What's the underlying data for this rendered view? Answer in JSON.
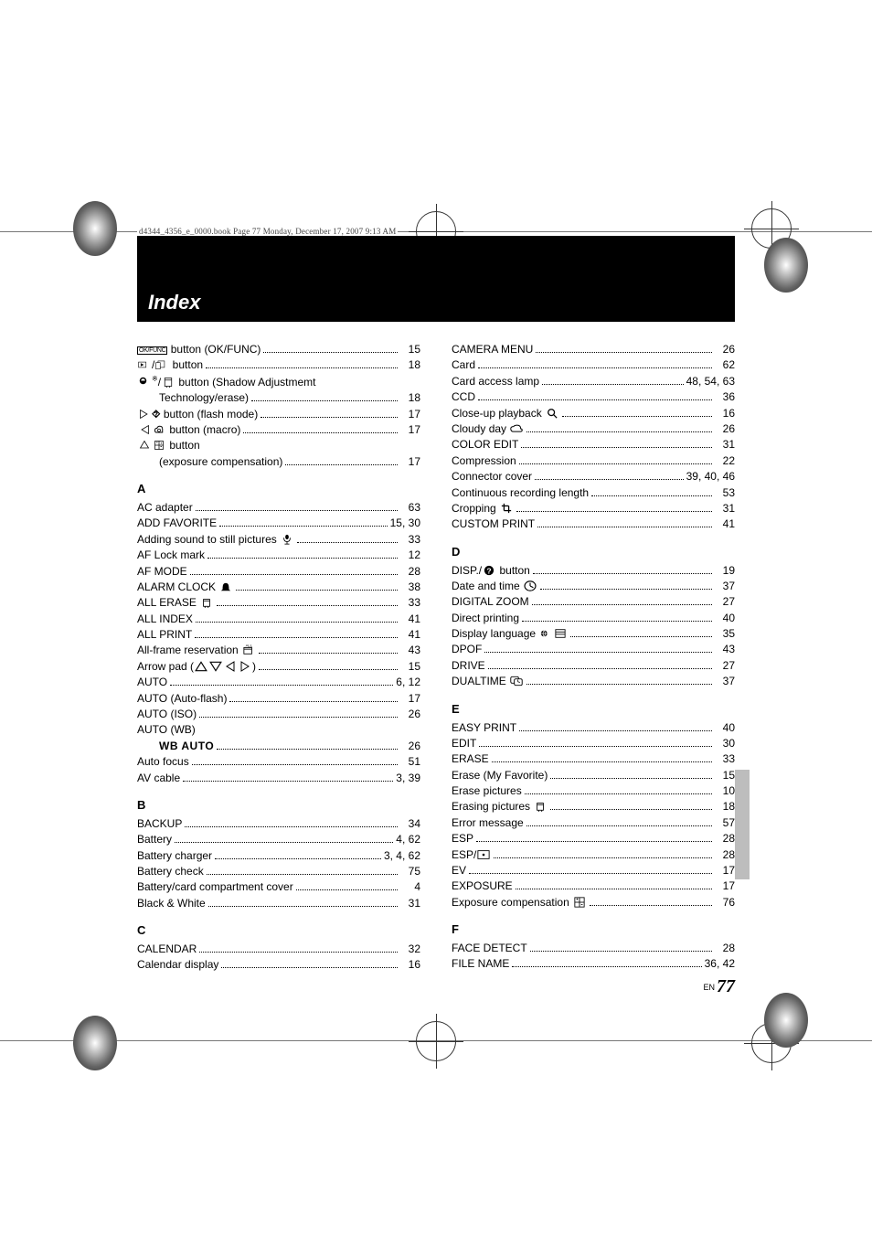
{
  "running_head": "d4344_4356_e_0000.book  Page 77  Monday, December 17, 2007  9:13 AM",
  "title": "Index",
  "footer": {
    "lang": "EN",
    "page": "77"
  },
  "left": {
    "pre": [
      {
        "label_html": "<span class='okfunc'>OK/FUNC</span> button (OK/FUNC)",
        "page": "15"
      },
      {
        "label_html": "<svg class='icon' viewBox='0 0 24 16'><rect x='1' y='3' width='14' height='10' fill='none' stroke='#000'/><polygon points='5,5 5,11 11,8' fill='#000'/></svg>/<svg class='icon' viewBox='0 0 24 16'><rect x='5' y='1' width='12' height='12' fill='none' stroke='#000'/><rect x='1' y='4' width='8' height='12' fill='#fff' stroke='#000'/></svg> button",
        "page": "18"
      },
      {
        "label_html": "<svg class='icon' viewBox='0 0 16 16'><circle cx='6' cy='6' r='4' fill='none' stroke='#000' stroke-width='2'/><path d='M2 6 A4 4 0 0 0 10 6' fill='#000'/></svg><sup style='font-size:8px'>※</sup>/<svg class='icon' viewBox='0 0 16 16'><rect x='3' y='2' width='10' height='12' fill='none' stroke='#000'/><line x1='3' y1='5' x2='13' y2='5' stroke='#000'/><line x1='6' y1='14' x2='6' y2='16' stroke='#000'/><line x1='10' y1='14' x2='10' y2='16' stroke='#000'/></svg> button (Shadow Adjustmemt",
        "nowrap_page": true
      },
      {
        "label_html": "Technology/erase)",
        "page": "18",
        "indent": true
      },
      {
        "label_html": "<svg class='icon' viewBox='0 0 16 16'><polygon points='2,2 2,14 12,8' fill='none' stroke='#000'/></svg><b>⯑</b> button (flash mode)",
        "page": "17"
      },
      {
        "label_html": "<svg class='icon' viewBox='0 0 16 16'><polygon points='14,2 14,14 4,8' fill='none' stroke='#000'/></svg><svg class='icon' viewBox='0 0 16 16'><path d='M4 12 Q2 12 2 9 Q2 6 5 6 Q6 3 9 3 Q13 3 13 7 L13 12 Z' fill='none' stroke='#000' stroke-width='1.3'/><circle cx='8' cy='9' r='2' fill='none' stroke='#000'/></svg> button (macro)",
        "page": "17"
      },
      {
        "label_html": "<svg class='icon' viewBox='0 0 16 16'><polygon points='8,2 2,12 14,12' fill='none' stroke='#000'/></svg><svg class='icon' viewBox='0 0 16 16'><rect x='2' y='2' width='12' height='12' fill='none' stroke='#000'/><line x1='2' y1='8' x2='14' y2='8' stroke='#000'/><line x1='8' y1='2' x2='8' y2='14' stroke='#000'/><line x1='4' y1='4' x2='6' y2='4' stroke='#000'/><line x1='10' y1='10' x2='12' y2='10' stroke='#000'/><line x1='11' y1='4' x2='11' y2='6' stroke='#000'/></svg> button",
        "nowrap_page": true
      },
      {
        "label_html": "(exposure compensation)",
        "page": "17",
        "indent": true
      }
    ],
    "A": [
      {
        "label": "AC adapter",
        "page": "63"
      },
      {
        "label": "ADD FAVORITE",
        "page": "15, 30"
      },
      {
        "label_html": "Adding sound to still pictures <svg class='icon' viewBox='0 0 12 14'><ellipse cx='6' cy='4' rx='2.2' ry='3' fill='#000'/><path d='M2 5 Q2 10 6 10 Q10 10 10 5' fill='none' stroke='#000'/><line x1='6' y1='10' x2='6' y2='13' stroke='#000'/><line x1='3' y1='13' x2='9' y2='13' stroke='#000'/></svg>",
        "page": "33"
      },
      {
        "label": "AF Lock mark",
        "page": "12"
      },
      {
        "label": "AF MODE",
        "page": "28"
      },
      {
        "label_html": "ALARM CLOCK <svg class='icon' viewBox='0 0 14 14'><path d='M7 2 Q3 2 3 8 L3 10 L1 12 L13 12 L11 10 L11 8 Q11 2 7 2 Z' fill='#000'/></svg>",
        "page": "38"
      },
      {
        "label_html": "ALL ERASE <svg class='icon' viewBox='0 0 14 14'><rect x='3' y='3' width='8' height='9' fill='none' stroke='#000'/><line x1='3' y1='5' x2='11' y2='5' stroke='#000'/><line x1='5' y1='12' x2='5' y2='14' stroke='#000'/><line x1='9' y1='12' x2='9' y2='14' stroke='#000'/></svg>",
        "page": "33"
      },
      {
        "label": "ALL INDEX",
        "page": "41"
      },
      {
        "label": "ALL PRINT",
        "page": "41"
      },
      {
        "label_html": "All-frame reservation <svg class='icon' viewBox='0 0 16 14'><rect x='2' y='4' width='10' height='8' fill='none' stroke='#000'/><line x1='2' y1='6' x2='12' y2='6' stroke='#000'/><text x='4' y='3' font-size='5'>ALL</text></svg>",
        "page": "43"
      },
      {
        "label_html": "Arrow pad (<svg class='icon' viewBox='0 0 12 10'><polygon points='6,1 1,9 11,9' fill='none' stroke='#000'/></svg><svg class='icon' viewBox='0 0 12 10'><polygon points='1,1 11,1 6,9' fill='none' stroke='#000'/></svg><svg class='icon' viewBox='0 0 10 12'><polygon points='9,1 9,11 1,6' fill='none' stroke='#000'/></svg><svg class='icon' viewBox='0 0 10 12'><polygon points='1,1 1,11 9,6' fill='none' stroke='#000'/></svg>)",
        "page": "15"
      },
      {
        "label": "AUTO",
        "page": "6, 12"
      },
      {
        "label": "AUTO (Auto-flash)",
        "page": "17"
      },
      {
        "label": "AUTO (ISO)",
        "page": "26"
      },
      {
        "label": "AUTO (WB)",
        "nowrap_page": true
      },
      {
        "label_html": "<span class='wb'>WB AUTO</span>",
        "page": "26"
      },
      {
        "label": "Auto focus",
        "page": "51"
      },
      {
        "label": "AV cable",
        "page": "3, 39"
      }
    ],
    "B": [
      {
        "label": "BACKUP",
        "page": "34"
      },
      {
        "label": "Battery",
        "page": "4, 62"
      },
      {
        "label": "Battery charger",
        "page": "3, 4, 62"
      },
      {
        "label": "Battery check",
        "page": "75"
      },
      {
        "label": "Battery/card compartment cover",
        "page": "4"
      },
      {
        "label": "Black & White",
        "page": "31"
      }
    ],
    "C": [
      {
        "label": "CALENDAR",
        "page": "32"
      },
      {
        "label": "Calendar display",
        "page": "16"
      }
    ]
  },
  "right": {
    "C_cont": [
      {
        "label": "CAMERA MENU",
        "page": "26"
      },
      {
        "label": "Card",
        "page": "62"
      },
      {
        "label": "Card access lamp",
        "page": "48, 54, 63"
      },
      {
        "label": "CCD",
        "page": "36"
      },
      {
        "label_html": "Close-up playback <svg class='icon' viewBox='0 0 14 14'><circle cx='6' cy='6' r='4' fill='none' stroke='#000' stroke-width='1.5'/><line x1='9' y1='9' x2='13' y2='13' stroke='#000' stroke-width='1.5'/></svg>",
        "page": "16"
      },
      {
        "label_html": "Cloudy day <svg class='icon' viewBox='0 0 18 12'><path d='M5 10 Q1 10 1 6 Q1 3 5 3 Q6 1 10 1 Q15 1 15 6 Q17 6 17 8 Q17 10 15 10 Z' fill='none' stroke='#000' stroke-width='1.3'/></svg>",
        "page": "26"
      },
      {
        "label": "COLOR EDIT",
        "page": "31"
      },
      {
        "label": "Compression",
        "page": "22"
      },
      {
        "label": "Connector cover",
        "page": "39, 40, 46"
      },
      {
        "label": "Continuous recording length",
        "page": "53"
      },
      {
        "label_html": "Cropping <svg class='icon' viewBox='0 0 14 14'><line x1='4' y1='1' x2='4' y2='10' stroke='#000' stroke-width='1.5'/><line x1='1' y1='4' x2='10' y2='4' stroke='#000' stroke-width='1.5'/><line x1='10' y1='4' x2='10' y2='13' stroke='#000' stroke-width='1.5'/><line x1='4' y1='10' x2='13' y2='10' stroke='#000' stroke-width='1.5'/></svg>",
        "page": "31"
      },
      {
        "label": "CUSTOM PRINT",
        "page": "41"
      }
    ],
    "D": [
      {
        "label_html": "DISP./<svg class='icon' viewBox='0 0 14 14'><circle cx='7' cy='7' r='6' fill='#000'/><text x='4' y='11' font-size='10' fill='#fff' font-weight='bold'>?</text></svg> button",
        "page": "19"
      },
      {
        "label_html": "Date and time <svg class='icon' viewBox='0 0 16 14'><ellipse cx='8' cy='7' rx='7' ry='6' fill='none' stroke='#000' stroke-width='1.3'/><line x1='8' y1='7' x2='8' y2='3' stroke='#000' stroke-width='1.3'/><line x1='8' y1='7' x2='12' y2='9' stroke='#000' stroke-width='1.3'/></svg>",
        "page": "37"
      },
      {
        "label": "DIGITAL ZOOM",
        "page": "27"
      },
      {
        "label": "Direct printing",
        "page": "40"
      },
      {
        "label_html": "Display language <svg class='icon' viewBox='0 0 14 14'><circle cx='5' cy='7' r='4' fill='#000'/><path d='M5 3 Q8 7 5 11 M5 3 Q2 7 5 11 M1 7 L9 7' stroke='#fff' stroke-width='0.8' fill='none'/></svg><svg class='icon' viewBox='0 0 14 14'><rect x='1' y='2' width='12' height='10' fill='none' stroke='#000'/><line x1='1' y1='5' x2='13' y2='5' stroke='#000'/><line x1='1' y1='8' x2='13' y2='8' stroke='#000'/></svg>",
        "page": "35"
      },
      {
        "label": "DPOF",
        "page": "43"
      },
      {
        "label": "DRIVE",
        "page": "27"
      },
      {
        "label_html": "DUALTIME <svg class='icon' viewBox='0 0 18 14'><rect x='1' y='1' width='11' height='9' rx='2' fill='none' stroke='#000' stroke-width='1.2'/><rect x='6' y='4' width='11' height='9' rx='2' fill='#fff' stroke='#000' stroke-width='1.2'/><line x1='11' y1='8' x2='11' y2='5' stroke='#000'/><line x1='11' y1='8' x2='14' y2='9' stroke='#000'/></svg>",
        "page": "37"
      }
    ],
    "E": [
      {
        "label": "EASY PRINT",
        "page": "40"
      },
      {
        "label": "EDIT",
        "page": "30"
      },
      {
        "label": "ERASE",
        "page": "33"
      },
      {
        "label": "Erase (My Favorite)",
        "page": "15"
      },
      {
        "label": "Erase pictures",
        "page": "10"
      },
      {
        "label_html": "Erasing pictures <svg class='icon' viewBox='0 0 14 14'><rect x='3' y='3' width='8' height='9' fill='none' stroke='#000'/><line x1='3' y1='5' x2='11' y2='5' stroke='#000'/><line x1='5' y1='12' x2='5' y2='14' stroke='#000'/><line x1='9' y1='12' x2='9' y2='14' stroke='#000'/></svg>",
        "page": "18"
      },
      {
        "label": "Error message",
        "page": "57"
      },
      {
        "label": "ESP",
        "page": "28"
      },
      {
        "label_html": "ESP/<svg class='icon' viewBox='0 0 16 12'><rect x='1' y='1' width='14' height='10' fill='none' stroke='#000'/><circle cx='8' cy='6' r='1.5' fill='#000'/></svg>",
        "page": "28"
      },
      {
        "label": "EV",
        "page": "17"
      },
      {
        "label": "EXPOSURE",
        "page": "17"
      },
      {
        "label_html": "Exposure compensation <svg class='icon' viewBox='0 0 14 14'><rect x='1' y='1' width='12' height='12' fill='none' stroke='#000'/><line x1='1' y1='7' x2='13' y2='7' stroke='#000'/><line x1='7' y1='1' x2='7' y2='13' stroke='#000'/><line x1='3' y1='3' x2='5' y2='3' stroke='#000'/><line x1='4' y1='2' x2='4' y2='4' stroke='#000'/><line x1='9' y1='10' x2='11' y2='10' stroke='#000'/></svg>",
        "page": "76"
      }
    ],
    "F": [
      {
        "label": "FACE DETECT",
        "page": "28"
      },
      {
        "label": "FILE NAME",
        "page": "36, 42"
      }
    ]
  }
}
